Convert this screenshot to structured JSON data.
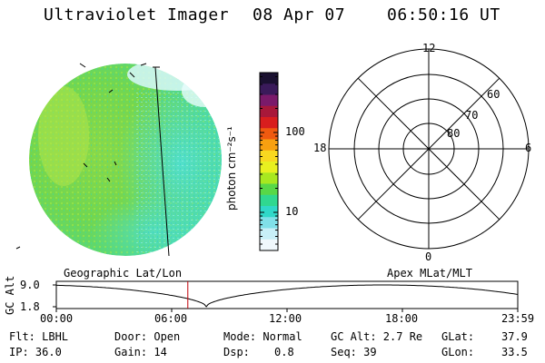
{
  "header": {
    "instrument": "Ultraviolet Imager",
    "date": "08 Apr 07",
    "time": "06:50:16 UT"
  },
  "colorbar": {
    "unit_label": "photon cm⁻²s⁻¹",
    "ticks": [
      {
        "label": "100",
        "value": 100
      },
      {
        "label": "10",
        "value": 10
      }
    ],
    "colors": [
      "#1a1030",
      "#3a1a5a",
      "#7a1a6a",
      "#a8183a",
      "#d81e1e",
      "#f05a10",
      "#f8a010",
      "#f8d820",
      "#e8f020",
      "#a8e820",
      "#58d848",
      "#30d890",
      "#30d8c8",
      "#80e0e8",
      "#c8f0f8",
      "#f0f8fc"
    ]
  },
  "images": {
    "geographic_label": "Geographic Lat/Lon",
    "apex_label": "Apex MLat/MLT",
    "colors": {
      "base_green": "#7ad84a",
      "cyan": "#4ae0d8",
      "light_cyan": "#a8f0f0",
      "yellowgreen": "#b8e840"
    }
  },
  "polar_plot": {
    "mlt_labels": {
      "top": "12",
      "left": "18",
      "right": "6",
      "bottom": "0"
    },
    "lat_labels": [
      "60",
      "70",
      "80"
    ]
  },
  "altitude_plot": {
    "ylabel": "GC Alt",
    "y_ticks": [
      "9.0",
      "1.8"
    ],
    "x_ticks": [
      "00:00",
      "06:00",
      "12:00",
      "18:00",
      "23:59"
    ],
    "marker_time_hours": 6.84
  },
  "info": {
    "filter": "Flt: LBHL",
    "ip": "IP: 36.0",
    "door": "Door: Open",
    "gain": "Gain: 14",
    "mode": "Mode: Normal",
    "dsp_label": "Dsp:",
    "dsp_value": "0.8",
    "gc_alt": "GC Alt: 2.7 Re",
    "seq": "Seq: 39",
    "glat_label": "GLat:",
    "glat_value": "37.9",
    "glon_label": "GLon:",
    "glon_value": "33.5"
  }
}
